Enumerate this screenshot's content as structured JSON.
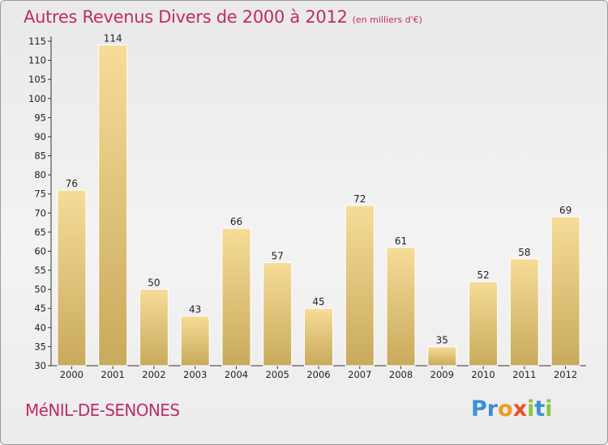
{
  "title": "Autres Revenus Divers de 2000 à 2012",
  "subtitle": "(en milliers d'€)",
  "commune": "MéNIL-DE-SENONES",
  "logo": {
    "letters": [
      "P",
      "r",
      "o",
      "x",
      "i",
      "t",
      "i"
    ],
    "colors": [
      "#3d8fd6",
      "#3d8fd6",
      "#f39a1f",
      "#e8502a",
      "#8cc63f",
      "#3d8fd6",
      "#8cc63f"
    ]
  },
  "colors": {
    "bar_light": "#f6dc98",
    "bar_dark": "#c9aa5c",
    "text": "#222222",
    "accent": "#c02b6a"
  },
  "chart_data": {
    "type": "bar",
    "categories": [
      "2000",
      "2001",
      "2002",
      "2003",
      "2004",
      "2005",
      "2006",
      "2007",
      "2008",
      "2009",
      "2010",
      "2011",
      "2012"
    ],
    "values": [
      76,
      114,
      50,
      43,
      66,
      57,
      45,
      72,
      61,
      35,
      52,
      58,
      69
    ],
    "ylim": [
      30,
      115
    ],
    "yticks": [
      30,
      35,
      40,
      45,
      50,
      55,
      60,
      65,
      70,
      75,
      80,
      85,
      90,
      95,
      100,
      105,
      110,
      115
    ],
    "grid": false
  }
}
